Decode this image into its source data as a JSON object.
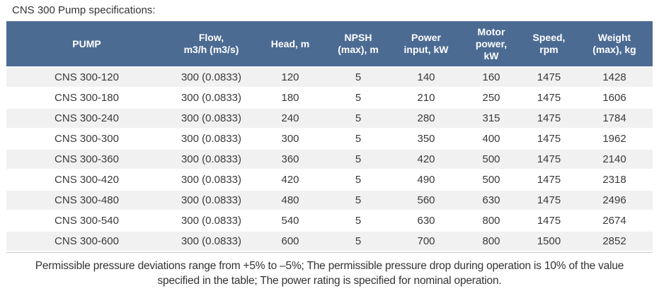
{
  "page": {
    "title": "CNS 300 Pump specifications:"
  },
  "colors": {
    "header_bg": "#4c6b93",
    "header_text": "#ffffff",
    "stripe_bg": "#f1f1f1",
    "row_bg": "#ffffff",
    "text": "#3a3a3a",
    "border_bottom": "#c9c9c9"
  },
  "table": {
    "headers": [
      {
        "label": "PUMP"
      },
      {
        "label": "Flow,\nm3/h (m3/s)"
      },
      {
        "label": "Head, m"
      },
      {
        "label": "NPSH\n(max), m"
      },
      {
        "label": "Power\ninput, kW"
      },
      {
        "label": "Motor\npower,\nkW"
      },
      {
        "label": "Speed,\nrpm"
      },
      {
        "label": "Weight\n(max), kg"
      }
    ],
    "rows": [
      [
        "CNS 300-120",
        "300 (0.0833)",
        "120",
        "5",
        "140",
        "160",
        "1475",
        "1428"
      ],
      [
        "CNS 300-180",
        "300 (0.0833)",
        "180",
        "5",
        "210",
        "250",
        "1475",
        "1606"
      ],
      [
        "CNS 300-240",
        "300 (0.0833)",
        "240",
        "5",
        "280",
        "315",
        "1475",
        "1784"
      ],
      [
        "CNS 300-300",
        "300 (0.0833)",
        "300",
        "5",
        "350",
        "400",
        "1475",
        "1962"
      ],
      [
        "CNS 300-360",
        "300 (0.0833)",
        "360",
        "5",
        "420",
        "500",
        "1475",
        "2140"
      ],
      [
        "CNS 300-420",
        "300 (0.0833)",
        "420",
        "5",
        "490",
        "500",
        "1475",
        "2318"
      ],
      [
        "CNS 300-480",
        "300 (0.0833)",
        "480",
        "5",
        "560",
        "630",
        "1475",
        "2496"
      ],
      [
        "CNS 300-540",
        "300 (0.0833)",
        "540",
        "5",
        "630",
        "800",
        "1475",
        "2674"
      ],
      [
        "CNS 300-600",
        "300 (0.0833)",
        "600",
        "5",
        "700",
        "800",
        "1500",
        "2852"
      ]
    ]
  },
  "footer": {
    "lines": [
      "Permissible pressure deviations range from +5% to –5%; The permissible pressure drop during operation is 10% of the value",
      "specified in the table; The power rating is specified for nominal operation."
    ]
  }
}
